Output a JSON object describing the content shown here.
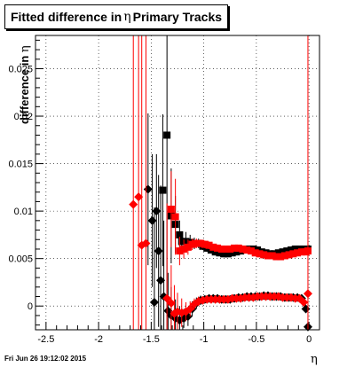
{
  "chart_data": {
    "type": "scatter",
    "title": "Fitted difference in",
    "title_symbol": "η",
    "title_suffix": "Primary Tracks",
    "xlabel": "η",
    "ylabel": "difference in",
    "ylabel_symbol": "η",
    "xlim": [
      -2.6,
      0.1
    ],
    "ylim": [
      -0.0025,
      0.0285
    ],
    "xticks": [
      -2.5,
      -2,
      -1.5,
      -1,
      -0.5,
      0
    ],
    "xtick_labels": [
      "-2.5",
      "-2",
      "-1.5",
      "-1",
      "-0.5",
      "0"
    ],
    "yticks": [
      0,
      0.005,
      0.01,
      0.015,
      0.02,
      0.025
    ],
    "ytick_labels": [
      "0",
      "0.005",
      "0.01",
      "0.015",
      "0.02",
      "0.025"
    ],
    "grid": true,
    "series": [
      {
        "color": "#000000",
        "marker": "square",
        "points": [
          [
            -1.35,
            0.018,
            0.025
          ],
          [
            -1.39,
            0.0122,
            0.008
          ],
          [
            -1.31,
            0.0095,
            0.005
          ],
          [
            -1.27,
            0.0086,
            0.003
          ],
          [
            -1.23,
            0.0075,
            0.0015
          ],
          [
            -1.21,
            0.0068,
            0.001
          ],
          [
            -1.17,
            0.0068,
            0.001
          ],
          [
            -1.13,
            0.0067,
            0.0008
          ],
          [
            -1.09,
            0.0066,
            0.0006
          ],
          [
            -1.05,
            0.0066,
            0.0005
          ],
          [
            -1.01,
            0.0063,
            0.0004
          ],
          [
            -0.97,
            0.0061,
            0.0004
          ],
          [
            -0.93,
            0.0059,
            0.0003
          ],
          [
            -0.89,
            0.0057,
            0.0003
          ],
          [
            -0.85,
            0.0056,
            0.0003
          ],
          [
            -0.81,
            0.0055,
            0.0003
          ],
          [
            -0.77,
            0.0055,
            0.0003
          ],
          [
            -0.73,
            0.0056,
            0.0003
          ],
          [
            -0.69,
            0.0057,
            0.0003
          ],
          [
            -0.65,
            0.0058,
            0.0003
          ],
          [
            -0.61,
            0.0059,
            0.0003
          ],
          [
            -0.57,
            0.006,
            0.0003
          ],
          [
            -0.53,
            0.006,
            0.0003
          ],
          [
            -0.49,
            0.0059,
            0.0003
          ],
          [
            -0.45,
            0.0057,
            0.0003
          ],
          [
            -0.41,
            0.0056,
            0.0003
          ],
          [
            -0.37,
            0.0055,
            0.0003
          ],
          [
            -0.33,
            0.0055,
            0.0003
          ],
          [
            -0.29,
            0.0056,
            0.0003
          ],
          [
            -0.25,
            0.0057,
            0.0003
          ],
          [
            -0.21,
            0.0058,
            0.0003
          ],
          [
            -0.17,
            0.0059,
            0.0003
          ],
          [
            -0.13,
            0.006,
            0.0003
          ],
          [
            -0.09,
            0.006,
            0.0003
          ],
          [
            -0.05,
            0.006,
            0.0003
          ],
          [
            -0.01,
            0.006,
            0.0004
          ]
        ]
      },
      {
        "color": "#000000",
        "marker": "diamond",
        "points": [
          [
            -1.53,
            0.0123,
            0.008
          ],
          [
            -1.45,
            0.01,
            0.006
          ],
          [
            -1.49,
            0.009,
            0.007
          ],
          [
            -1.43,
            0.0058,
            0.008
          ],
          [
            -1.41,
            0.0027,
            0.01
          ],
          [
            -1.47,
            0.0004,
            0.01
          ],
          [
            -1.38,
            0.001,
            0.008
          ],
          [
            -1.34,
            -0.0005,
            0.004
          ],
          [
            -1.31,
            -0.001,
            0.003
          ],
          [
            -1.27,
            -0.0013,
            0.002
          ],
          [
            -1.23,
            -0.0015,
            0.0015
          ],
          [
            -1.19,
            -0.0013,
            0.001
          ],
          [
            -1.15,
            -0.0011,
            0.001
          ],
          [
            -1.11,
            -0.0003,
            0.0008
          ],
          [
            -1.07,
            0.0003,
            0.0006
          ],
          [
            -1.03,
            0.0006,
            0.0005
          ],
          [
            -0.99,
            0.0007,
            0.0004
          ],
          [
            -0.95,
            0.0008,
            0.0004
          ],
          [
            -0.91,
            0.0008,
            0.0004
          ],
          [
            -0.87,
            0.0008,
            0.0003
          ],
          [
            -0.83,
            0.0007,
            0.0003
          ],
          [
            -0.79,
            0.0007,
            0.0003
          ],
          [
            -0.75,
            0.0007,
            0.0003
          ],
          [
            -0.71,
            0.0008,
            0.0003
          ],
          [
            -0.67,
            0.0009,
            0.0003
          ],
          [
            -0.63,
            0.0009,
            0.0003
          ],
          [
            -0.59,
            0.001,
            0.0003
          ],
          [
            -0.55,
            0.001,
            0.0003
          ],
          [
            -0.51,
            0.001,
            0.0003
          ],
          [
            -0.47,
            0.001,
            0.0003
          ],
          [
            -0.43,
            0.0011,
            0.0003
          ],
          [
            -0.39,
            0.0011,
            0.0003
          ],
          [
            -0.35,
            0.001,
            0.0003
          ],
          [
            -0.31,
            0.001,
            0.0003
          ],
          [
            -0.27,
            0.001,
            0.0003
          ],
          [
            -0.23,
            0.0009,
            0.0003
          ],
          [
            -0.19,
            0.0009,
            0.0003
          ],
          [
            -0.15,
            0.0009,
            0.0003
          ],
          [
            -0.11,
            0.0009,
            0.0003
          ],
          [
            -0.07,
            0.0008,
            0.0003
          ],
          [
            -0.03,
            -0.0003,
            0.0004
          ],
          [
            -0.01,
            -0.0022,
            0.0006
          ]
        ]
      },
      {
        "color": "#ff0000",
        "marker": "square",
        "points": [
          [
            -1.31,
            0.0102,
            0.004
          ],
          [
            -1.27,
            0.0094,
            0.004
          ],
          [
            -1.23,
            0.0058,
            0.0015
          ],
          [
            -1.19,
            0.006,
            0.001
          ],
          [
            -1.15,
            0.0062,
            0.0008
          ],
          [
            -1.11,
            0.0065,
            0.0006
          ],
          [
            -1.07,
            0.0066,
            0.0005
          ],
          [
            -1.03,
            0.0066,
            0.0004
          ],
          [
            -0.99,
            0.0065,
            0.0004
          ],
          [
            -0.95,
            0.0064,
            0.0004
          ],
          [
            -0.91,
            0.0062,
            0.0003
          ],
          [
            -0.87,
            0.0061,
            0.0003
          ],
          [
            -0.83,
            0.006,
            0.0003
          ],
          [
            -0.79,
            0.006,
            0.0003
          ],
          [
            -0.75,
            0.006,
            0.0003
          ],
          [
            -0.71,
            0.0061,
            0.0003
          ],
          [
            -0.67,
            0.0061,
            0.0003
          ],
          [
            -0.63,
            0.006,
            0.0003
          ],
          [
            -0.59,
            0.0059,
            0.0003
          ],
          [
            -0.55,
            0.0058,
            0.0003
          ],
          [
            -0.51,
            0.0056,
            0.0003
          ],
          [
            -0.47,
            0.0055,
            0.0003
          ],
          [
            -0.43,
            0.0054,
            0.0003
          ],
          [
            -0.39,
            0.0053,
            0.0003
          ],
          [
            -0.35,
            0.0053,
            0.0003
          ],
          [
            -0.31,
            0.0052,
            0.0003
          ],
          [
            -0.27,
            0.0052,
            0.0003
          ],
          [
            -0.23,
            0.0053,
            0.0003
          ],
          [
            -0.19,
            0.0054,
            0.0003
          ],
          [
            -0.15,
            0.0055,
            0.0003
          ],
          [
            -0.11,
            0.0056,
            0.0003
          ],
          [
            -0.07,
            0.0057,
            0.0003
          ],
          [
            -0.03,
            0.0057,
            0.0003
          ],
          [
            -0.01,
            0.0058,
            0.0004
          ]
        ]
      },
      {
        "color": "#ff0000",
        "marker": "diamond",
        "points": [
          [
            -1.67,
            0.0107,
            0.04
          ],
          [
            -1.62,
            0.0115,
            0.04
          ],
          [
            -1.59,
            0.0064,
            0.04
          ],
          [
            -1.55,
            0.0066,
            0.04
          ],
          [
            -1.35,
            0.0008,
            0.01
          ],
          [
            -1.31,
            0.0003,
            0.004
          ],
          [
            -1.28,
            -0.0008,
            0.003
          ],
          [
            -1.25,
            -0.0006,
            0.002
          ],
          [
            -1.21,
            -0.0007,
            0.0015
          ],
          [
            -1.17,
            -0.0006,
            0.001
          ],
          [
            -1.13,
            -0.0003,
            0.0008
          ],
          [
            -1.09,
            0.0002,
            0.0006
          ],
          [
            -1.05,
            0.0005,
            0.0005
          ],
          [
            -1.01,
            0.0006,
            0.0004
          ],
          [
            -0.97,
            0.0007,
            0.0004
          ],
          [
            -0.93,
            0.0007,
            0.0004
          ],
          [
            -0.89,
            0.0007,
            0.0003
          ],
          [
            -0.85,
            0.0007,
            0.0003
          ],
          [
            -0.81,
            0.0007,
            0.0003
          ],
          [
            -0.77,
            0.0007,
            0.0003
          ],
          [
            -0.73,
            0.0008,
            0.0003
          ],
          [
            -0.69,
            0.0008,
            0.0003
          ],
          [
            -0.65,
            0.0008,
            0.0003
          ],
          [
            -0.61,
            0.0009,
            0.0003
          ],
          [
            -0.57,
            0.0009,
            0.0003
          ],
          [
            -0.53,
            0.0009,
            0.0003
          ],
          [
            -0.49,
            0.001,
            0.0003
          ],
          [
            -0.45,
            0.001,
            0.0003
          ],
          [
            -0.41,
            0.001,
            0.0003
          ],
          [
            -0.37,
            0.001,
            0.0003
          ],
          [
            -0.33,
            0.001,
            0.0003
          ],
          [
            -0.29,
            0.001,
            0.0003
          ],
          [
            -0.25,
            0.0009,
            0.0003
          ],
          [
            -0.21,
            0.0009,
            0.0003
          ],
          [
            -0.17,
            0.0009,
            0.0003
          ],
          [
            -0.13,
            0.0008,
            0.0003
          ],
          [
            -0.09,
            0.0008,
            0.0003
          ],
          [
            -0.05,
            0.0004,
            0.0004
          ],
          [
            -0.01,
            0.0013,
            0.04
          ]
        ]
      }
    ]
  },
  "footer": "Fri Jun 26 19:12:02 2015"
}
